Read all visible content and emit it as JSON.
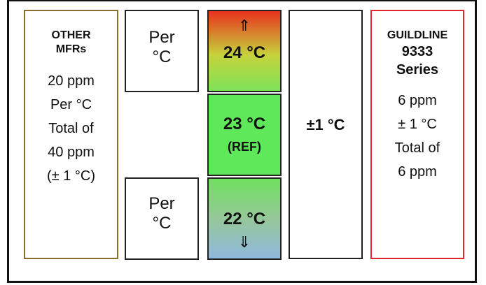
{
  "left": {
    "heading_1": "OTHER",
    "heading_2": "MFRs",
    "lines": [
      "20 ppm",
      "Per °C",
      "Total of",
      "40 ppm",
      "(± 1 °C)"
    ]
  },
  "per_top": {
    "line1": "Per",
    "line2": "°C"
  },
  "per_bottom": {
    "line1": "Per",
    "line2": "°C"
  },
  "temps": {
    "top": {
      "arrow": "⇑",
      "label": "24 °C"
    },
    "mid": {
      "label": "23 °C",
      "sub": "(REF)"
    },
    "bottom": {
      "label": "22 °C",
      "arrow": "⇓"
    }
  },
  "center": {
    "label": "±1 °C"
  },
  "right": {
    "heading_1": "GUILDLINE",
    "heading_2": "9333",
    "heading_3": "Series",
    "lines": [
      "6 ppm",
      "± 1 °C",
      "Total of",
      "6 ppm"
    ]
  },
  "colors": {
    "left_border": "#8a6d2a",
    "right_border": "#e0262a",
    "hot": "#e8321e",
    "ref_green": "#5fe85a",
    "cold": "#8fb8dd"
  }
}
